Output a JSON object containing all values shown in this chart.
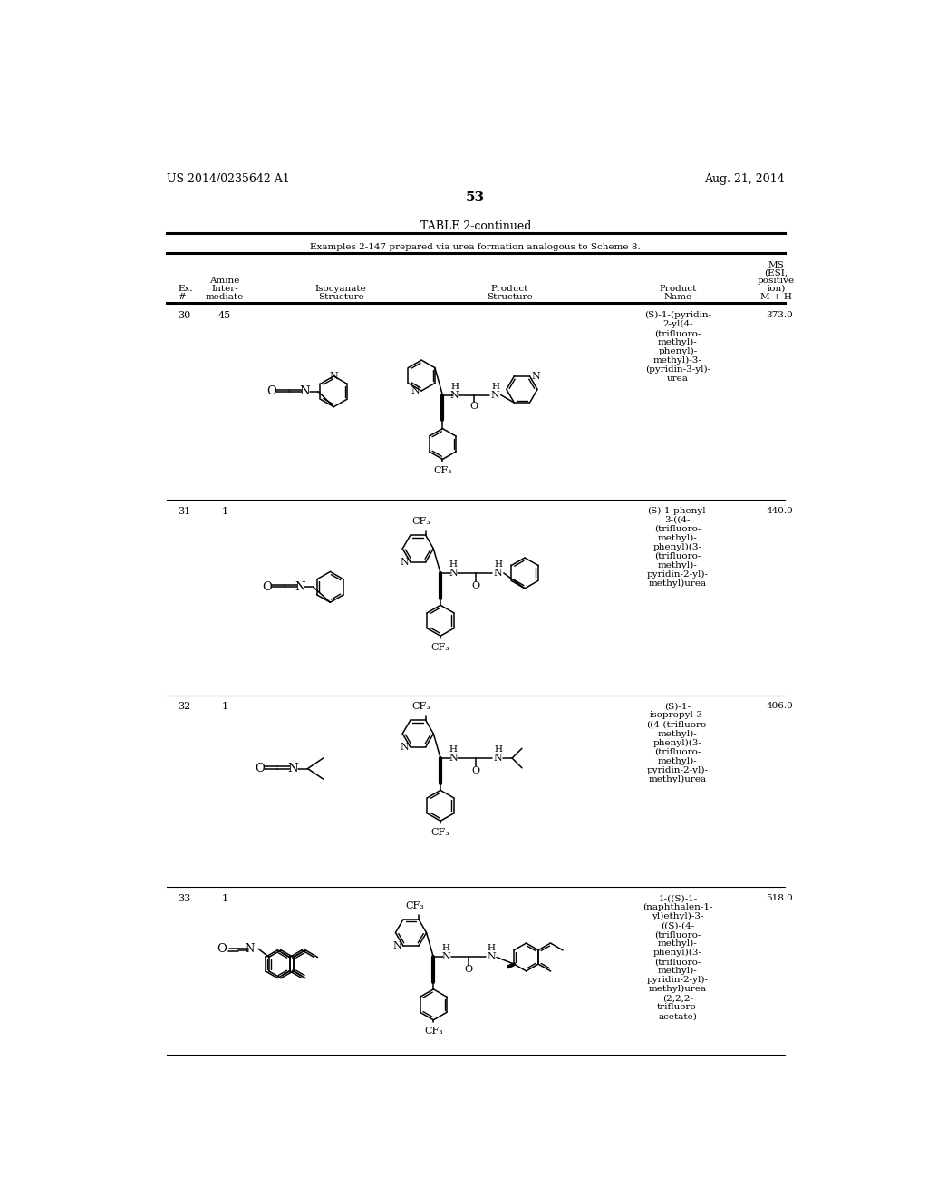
{
  "background_color": "#ffffff",
  "header_left": "US 2014/0235642 A1",
  "header_right": "Aug. 21, 2014",
  "page_number": "53",
  "table_title": "TABLE 2-continued",
  "table_subtitle": "Examples 2-147 prepared via urea formation analogous to Scheme 8."
}
